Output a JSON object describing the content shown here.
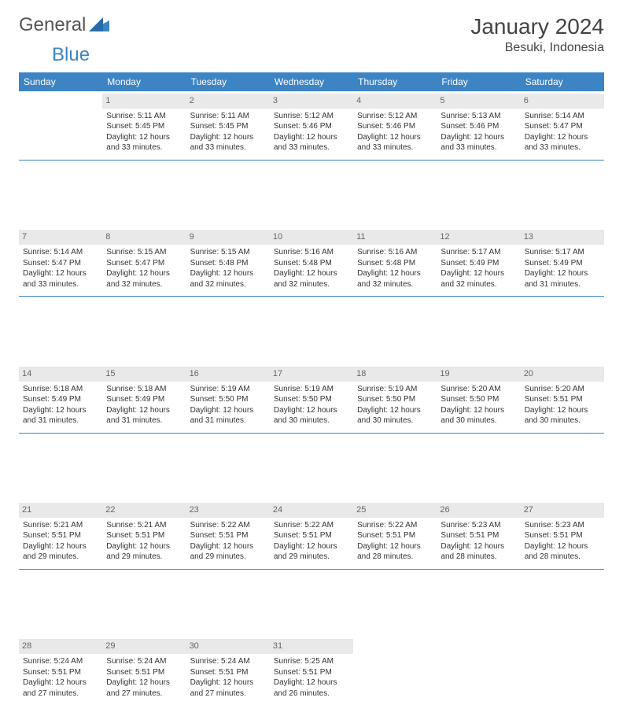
{
  "brand": {
    "part1": "General",
    "part2": "Blue"
  },
  "title": "January 2024",
  "location": "Besuki, Indonesia",
  "weekdays": [
    "Sunday",
    "Monday",
    "Tuesday",
    "Wednesday",
    "Thursday",
    "Friday",
    "Saturday"
  ],
  "colors": {
    "accent": "#3d84c4",
    "daybar": "#e9e9e9",
    "text": "#333333"
  },
  "fonts": {
    "title_size": 28,
    "location_size": 16,
    "header_size": 12,
    "cell_size": 10
  },
  "cellLabels": {
    "sunrise": "Sunrise:",
    "sunset": "Sunset:",
    "daylight": "Daylight:"
  },
  "weeks": [
    [
      null,
      {
        "n": "1",
        "sr": "5:11 AM",
        "ss": "5:45 PM",
        "dl": "12 hours and 33 minutes."
      },
      {
        "n": "2",
        "sr": "5:11 AM",
        "ss": "5:45 PM",
        "dl": "12 hours and 33 minutes."
      },
      {
        "n": "3",
        "sr": "5:12 AM",
        "ss": "5:46 PM",
        "dl": "12 hours and 33 minutes."
      },
      {
        "n": "4",
        "sr": "5:12 AM",
        "ss": "5:46 PM",
        "dl": "12 hours and 33 minutes."
      },
      {
        "n": "5",
        "sr": "5:13 AM",
        "ss": "5:46 PM",
        "dl": "12 hours and 33 minutes."
      },
      {
        "n": "6",
        "sr": "5:14 AM",
        "ss": "5:47 PM",
        "dl": "12 hours and 33 minutes."
      }
    ],
    [
      {
        "n": "7",
        "sr": "5:14 AM",
        "ss": "5:47 PM",
        "dl": "12 hours and 33 minutes."
      },
      {
        "n": "8",
        "sr": "5:15 AM",
        "ss": "5:47 PM",
        "dl": "12 hours and 32 minutes."
      },
      {
        "n": "9",
        "sr": "5:15 AM",
        "ss": "5:48 PM",
        "dl": "12 hours and 32 minutes."
      },
      {
        "n": "10",
        "sr": "5:16 AM",
        "ss": "5:48 PM",
        "dl": "12 hours and 32 minutes."
      },
      {
        "n": "11",
        "sr": "5:16 AM",
        "ss": "5:48 PM",
        "dl": "12 hours and 32 minutes."
      },
      {
        "n": "12",
        "sr": "5:17 AM",
        "ss": "5:49 PM",
        "dl": "12 hours and 32 minutes."
      },
      {
        "n": "13",
        "sr": "5:17 AM",
        "ss": "5:49 PM",
        "dl": "12 hours and 31 minutes."
      }
    ],
    [
      {
        "n": "14",
        "sr": "5:18 AM",
        "ss": "5:49 PM",
        "dl": "12 hours and 31 minutes."
      },
      {
        "n": "15",
        "sr": "5:18 AM",
        "ss": "5:49 PM",
        "dl": "12 hours and 31 minutes."
      },
      {
        "n": "16",
        "sr": "5:19 AM",
        "ss": "5:50 PM",
        "dl": "12 hours and 31 minutes."
      },
      {
        "n": "17",
        "sr": "5:19 AM",
        "ss": "5:50 PM",
        "dl": "12 hours and 30 minutes."
      },
      {
        "n": "18",
        "sr": "5:19 AM",
        "ss": "5:50 PM",
        "dl": "12 hours and 30 minutes."
      },
      {
        "n": "19",
        "sr": "5:20 AM",
        "ss": "5:50 PM",
        "dl": "12 hours and 30 minutes."
      },
      {
        "n": "20",
        "sr": "5:20 AM",
        "ss": "5:51 PM",
        "dl": "12 hours and 30 minutes."
      }
    ],
    [
      {
        "n": "21",
        "sr": "5:21 AM",
        "ss": "5:51 PM",
        "dl": "12 hours and 29 minutes."
      },
      {
        "n": "22",
        "sr": "5:21 AM",
        "ss": "5:51 PM",
        "dl": "12 hours and 29 minutes."
      },
      {
        "n": "23",
        "sr": "5:22 AM",
        "ss": "5:51 PM",
        "dl": "12 hours and 29 minutes."
      },
      {
        "n": "24",
        "sr": "5:22 AM",
        "ss": "5:51 PM",
        "dl": "12 hours and 29 minutes."
      },
      {
        "n": "25",
        "sr": "5:22 AM",
        "ss": "5:51 PM",
        "dl": "12 hours and 28 minutes."
      },
      {
        "n": "26",
        "sr": "5:23 AM",
        "ss": "5:51 PM",
        "dl": "12 hours and 28 minutes."
      },
      {
        "n": "27",
        "sr": "5:23 AM",
        "ss": "5:51 PM",
        "dl": "12 hours and 28 minutes."
      }
    ],
    [
      {
        "n": "28",
        "sr": "5:24 AM",
        "ss": "5:51 PM",
        "dl": "12 hours and 27 minutes."
      },
      {
        "n": "29",
        "sr": "5:24 AM",
        "ss": "5:51 PM",
        "dl": "12 hours and 27 minutes."
      },
      {
        "n": "30",
        "sr": "5:24 AM",
        "ss": "5:51 PM",
        "dl": "12 hours and 27 minutes."
      },
      {
        "n": "31",
        "sr": "5:25 AM",
        "ss": "5:51 PM",
        "dl": "12 hours and 26 minutes."
      },
      null,
      null,
      null
    ]
  ]
}
